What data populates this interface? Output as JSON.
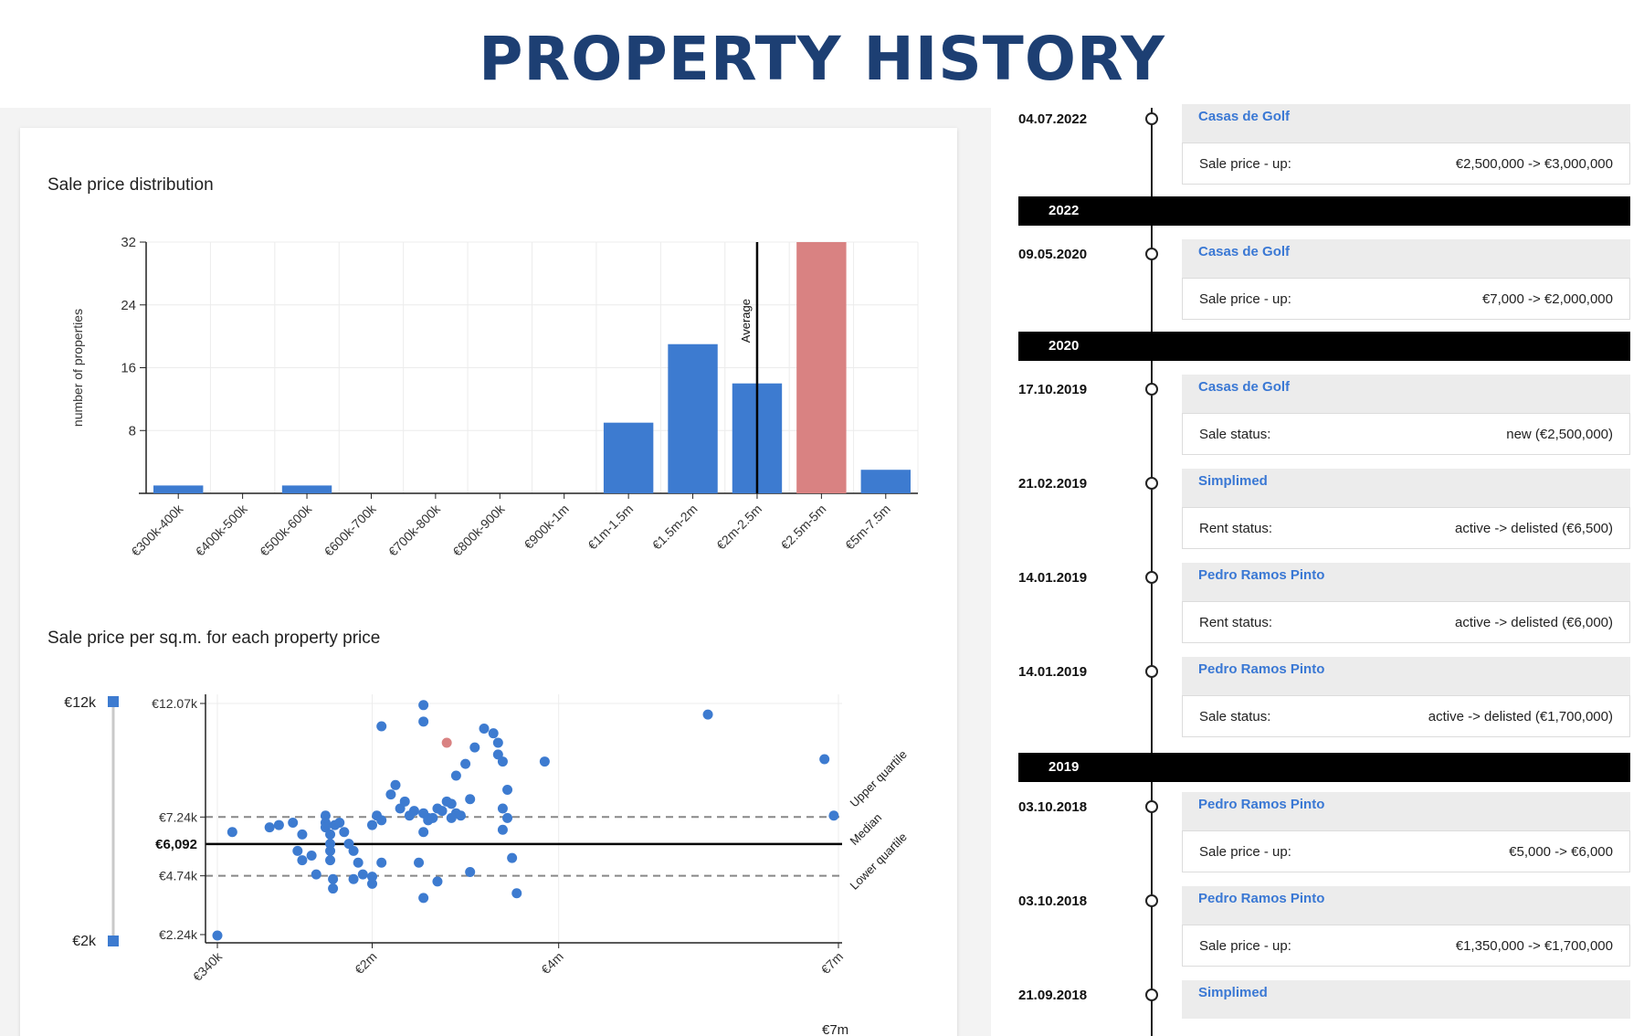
{
  "page": {
    "title": "PROPERTY HISTORY"
  },
  "distribution": {
    "title": "Sale price distribution",
    "chart_data": {
      "type": "bar",
      "categories": [
        "€300k-400k",
        "€400k-500k",
        "€500k-600k",
        "€600k-700k",
        "€700k-800k",
        "€800k-900k",
        "€900k-1m",
        "€1m-1.5m",
        "€1.5m-2m",
        "€2m-2.5m",
        "€2.5m-5m",
        "€5m-7.5m"
      ],
      "values": [
        1,
        0,
        1,
        0,
        0,
        0,
        0,
        9,
        19,
        14,
        32,
        3
      ],
      "highlight_index": 10,
      "ylabel": "number of properties",
      "ylim": [
        0,
        32
      ],
      "yticks": [
        8,
        16,
        24,
        32
      ],
      "average_label": "Average",
      "average_category_index": 9,
      "colors": {
        "bar": "#3d7bd0",
        "highlight": "#d98282"
      }
    }
  },
  "scatter": {
    "title": "Sale price per sq.m. for each property price",
    "range_top": "€12k",
    "range_bottom": "€2k",
    "xaxis_extra_label": "€7m",
    "chart_data": {
      "type": "scatter",
      "xticks": [
        {
          "v": 0.34,
          "label": "€340k"
        },
        {
          "v": 2,
          "label": "€2m"
        },
        {
          "v": 4,
          "label": "€4m"
        },
        {
          "v": 7,
          "label": "€7m"
        }
      ],
      "yticks": [
        {
          "v": 12.07,
          "label": "€12.07k"
        },
        {
          "v": 7.24,
          "label": "€7.24k"
        },
        {
          "v": 4.74,
          "label": "€4.74k"
        },
        {
          "v": 2.24,
          "label": "€2.24k"
        }
      ],
      "median": {
        "v": 6.092,
        "label": "€6,092",
        "name": "Median"
      },
      "upper_quartile": {
        "v": 7.24,
        "name": "Upper quartile"
      },
      "lower_quartile": {
        "v": 4.74,
        "name": "Lower quartile"
      },
      "colors": {
        "point": "#3d7bd0",
        "highlight": "#d98282"
      },
      "points": [
        [
          0.34,
          2.2
        ],
        [
          0.5,
          6.6
        ],
        [
          0.9,
          6.8
        ],
        [
          1.0,
          6.9
        ],
        [
          1.15,
          7.0
        ],
        [
          1.25,
          6.5
        ],
        [
          1.2,
          5.8
        ],
        [
          1.25,
          5.4
        ],
        [
          1.35,
          5.6
        ],
        [
          1.4,
          4.8
        ],
        [
          1.5,
          7.3
        ],
        [
          1.5,
          7.0
        ],
        [
          1.5,
          6.8
        ],
        [
          1.55,
          6.5
        ],
        [
          1.55,
          6.1
        ],
        [
          1.55,
          5.8
        ],
        [
          1.55,
          5.4
        ],
        [
          1.58,
          4.6
        ],
        [
          1.58,
          4.2
        ],
        [
          1.6,
          6.9
        ],
        [
          1.65,
          7.0
        ],
        [
          1.7,
          6.6
        ],
        [
          1.75,
          6.1
        ],
        [
          1.8,
          5.8
        ],
        [
          1.8,
          4.6
        ],
        [
          1.85,
          5.3
        ],
        [
          1.9,
          4.8
        ],
        [
          2.0,
          6.9
        ],
        [
          2.05,
          7.3
        ],
        [
          2.1,
          7.1
        ],
        [
          2.1,
          5.3
        ],
        [
          2.0,
          4.7
        ],
        [
          2.0,
          4.4
        ],
        [
          2.1,
          11.1
        ],
        [
          2.2,
          8.2
        ],
        [
          2.25,
          8.6
        ],
        [
          2.3,
          7.6
        ],
        [
          2.35,
          7.9
        ],
        [
          2.4,
          7.3
        ],
        [
          2.45,
          7.5
        ],
        [
          2.55,
          7.4
        ],
        [
          2.6,
          7.2
        ],
        [
          2.6,
          7.1
        ],
        [
          2.65,
          7.2
        ],
        [
          2.7,
          7.6
        ],
        [
          2.75,
          7.5
        ],
        [
          2.85,
          7.8
        ],
        [
          2.9,
          7.4
        ],
        [
          2.95,
          7.3
        ],
        [
          2.55,
          6.6
        ],
        [
          2.5,
          5.3
        ],
        [
          2.55,
          3.8
        ],
        [
          2.7,
          4.5
        ],
        [
          2.8,
          7.9
        ],
        [
          2.85,
          7.2
        ],
        [
          2.9,
          9.0
        ],
        [
          3.0,
          9.5
        ],
        [
          3.05,
          8.0
        ],
        [
          3.1,
          10.2
        ],
        [
          3.2,
          11.0
        ],
        [
          3.3,
          10.8
        ],
        [
          3.35,
          10.4
        ],
        [
          3.35,
          9.9
        ],
        [
          3.4,
          9.6
        ],
        [
          3.4,
          6.7
        ],
        [
          3.45,
          8.4
        ],
        [
          3.4,
          7.6
        ],
        [
          3.45,
          7.2
        ],
        [
          3.5,
          5.5
        ],
        [
          3.05,
          4.9
        ],
        [
          3.55,
          4.0
        ],
        [
          3.85,
          9.6
        ],
        [
          2.55,
          12.0
        ],
        [
          2.55,
          11.3
        ],
        [
          5.6,
          11.6
        ],
        [
          6.85,
          9.7
        ],
        [
          6.95,
          7.3
        ]
      ],
      "highlight_point": [
        2.8,
        10.4
      ]
    }
  },
  "timeline": {
    "entries": [
      {
        "type": "event",
        "date": "04.07.2022",
        "agency": "Casas de Golf",
        "label": "Sale price - up:",
        "value": "€2,500,000 -> €3,000,000"
      },
      {
        "type": "year",
        "year": "2022"
      },
      {
        "type": "event",
        "date": "09.05.2020",
        "agency": "Casas de Golf",
        "label": "Sale price - up:",
        "value": "€7,000 -> €2,000,000"
      },
      {
        "type": "year",
        "year": "2020"
      },
      {
        "type": "event",
        "date": "17.10.2019",
        "agency": "Casas de Golf",
        "label": "Sale status:",
        "value": "new (€2,500,000)"
      },
      {
        "type": "event",
        "date": "21.02.2019",
        "agency": "Simplimed",
        "label": "Rent status:",
        "value": "active -> delisted (€6,500)"
      },
      {
        "type": "event",
        "date": "14.01.2019",
        "agency": "Pedro Ramos Pinto",
        "label": "Rent status:",
        "value": "active -> delisted (€6,000)"
      },
      {
        "type": "event",
        "date": "14.01.2019",
        "agency": "Pedro Ramos Pinto",
        "label": "Sale status:",
        "value": "active -> delisted (€1,700,000)"
      },
      {
        "type": "year",
        "year": "2019"
      },
      {
        "type": "event",
        "date": "03.10.2018",
        "agency": "Pedro Ramos Pinto",
        "label": "Sale price - up:",
        "value": "€5,000 -> €6,000"
      },
      {
        "type": "event",
        "date": "03.10.2018",
        "agency": "Pedro Ramos Pinto",
        "label": "Sale price - up:",
        "value": "€1,350,000 -> €1,700,000"
      },
      {
        "type": "event",
        "date": "21.09.2018",
        "agency": "Simplimed",
        "label": "",
        "value": ""
      }
    ]
  }
}
